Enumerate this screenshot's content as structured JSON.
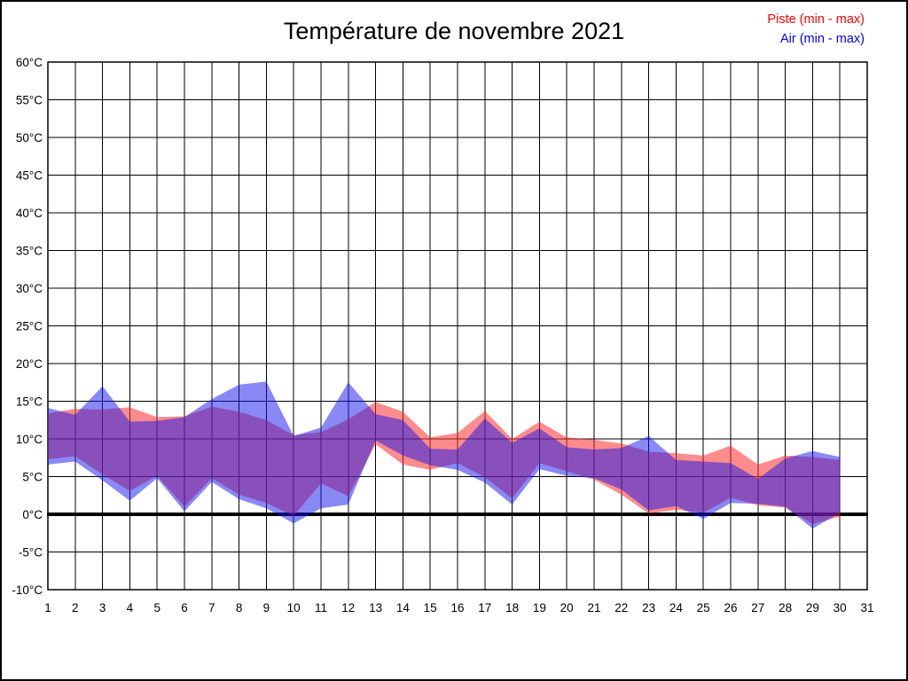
{
  "window": {
    "title": "Température de novembre 2021"
  },
  "legend": {
    "position": "top-right",
    "items": [
      {
        "label": "Piste (min - max)",
        "color": "#ff0000"
      },
      {
        "label": "Air (min - max)",
        "color": "#0000ff"
      }
    ]
  },
  "chart_data": {
    "type": "area",
    "title": "Température de novembre 2021",
    "xlabel": "",
    "ylabel": "",
    "xlim": [
      1,
      31
    ],
    "ylim": [
      -10,
      60
    ],
    "y_tick_step": 5,
    "grid": "on",
    "zero_line": true,
    "legend_position": "top-right",
    "x": [
      1,
      2,
      3,
      4,
      5,
      6,
      7,
      8,
      9,
      10,
      11,
      12,
      13,
      14,
      15,
      16,
      17,
      18,
      19,
      20,
      21,
      22,
      23,
      24,
      25,
      26,
      27,
      28,
      29,
      30
    ],
    "x_tick_labels": [
      "1",
      "2",
      "3",
      "4",
      "5",
      "6",
      "7",
      "8",
      "9",
      "10",
      "11",
      "12",
      "13",
      "14",
      "15",
      "16",
      "17",
      "18",
      "19",
      "20",
      "21",
      "22",
      "23",
      "24",
      "25",
      "26",
      "27",
      "28",
      "29",
      "30",
      "31"
    ],
    "y_tick_labels": [
      "60°C",
      "55°C",
      "50°C",
      "45°C",
      "40°C",
      "35°C",
      "30°C",
      "25°C",
      "20°C",
      "15°C",
      "10°C",
      "5°C",
      "0°C",
      "-5°C",
      "-10°C"
    ],
    "series": [
      {
        "name": "Piste (min - max)",
        "fill": "rgba(255,45,45,0.55)",
        "min": [
          7.3,
          7.7,
          5.3,
          3.1,
          5.1,
          1.0,
          4.8,
          2.6,
          1.5,
          -0.2,
          4.1,
          2.4,
          9.3,
          6.6,
          5.9,
          6.8,
          4.9,
          2.1,
          6.8,
          5.7,
          4.6,
          2.6,
          0.1,
          0.6,
          0.2,
          2.2,
          1.2,
          0.9,
          -1.3,
          -0.3
        ],
        "max": [
          13.4,
          14.0,
          13.9,
          14.2,
          12.9,
          13.0,
          14.3,
          13.6,
          12.5,
          10.5,
          10.9,
          12.6,
          14.9,
          13.6,
          10.2,
          10.8,
          13.7,
          10.0,
          12.3,
          10.2,
          9.9,
          9.4,
          8.3,
          8.1,
          7.8,
          9.1,
          6.6,
          7.8,
          7.6,
          7.2
        ]
      },
      {
        "name": "Air (min - max)",
        "fill": "rgba(20,20,235,0.5)",
        "min": [
          6.6,
          7.0,
          4.5,
          1.8,
          4.8,
          0.4,
          4.3,
          2.0,
          0.8,
          -1.2,
          0.8,
          1.3,
          9.8,
          7.8,
          6.5,
          5.9,
          4.2,
          1.3,
          6.0,
          5.1,
          4.8,
          3.3,
          0.5,
          1.1,
          -0.6,
          1.5,
          1.4,
          1.0,
          -1.9,
          0.2
        ],
        "max": [
          14.1,
          13.2,
          17.0,
          12.3,
          12.4,
          12.9,
          15.3,
          17.2,
          17.6,
          10.4,
          11.5,
          17.5,
          13.3,
          12.5,
          8.7,
          8.6,
          12.7,
          9.5,
          11.4,
          8.9,
          8.6,
          8.8,
          10.4,
          7.2,
          7.0,
          6.8,
          4.7,
          7.4,
          8.4,
          7.6
        ]
      }
    ]
  }
}
